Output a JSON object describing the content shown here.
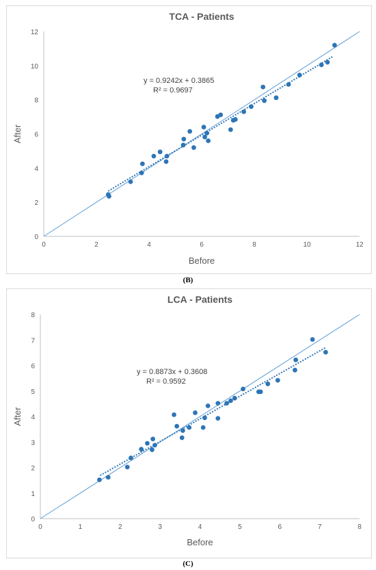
{
  "chart_data": [
    {
      "type": "scatter",
      "title": "TCA - Patients",
      "xlabel": "Before",
      "ylabel": "After",
      "xlim": [
        0,
        12
      ],
      "ylim": [
        0,
        12
      ],
      "xticks": [
        0,
        2,
        4,
        6,
        8,
        10,
        12
      ],
      "yticks": [
        0,
        2,
        4,
        6,
        8,
        10,
        12
      ],
      "grid": false,
      "identity_line": true,
      "trendline": {
        "type": "linear",
        "slope": 0.9242,
        "intercept": 0.3865,
        "x_range": [
          2.45,
          11.0
        ]
      },
      "equation": "y = 0.9242x + 0.3865",
      "r_squared": "R² = 0.9697",
      "colors": {
        "points": "#2e75b6",
        "identity": "#5b9bd5",
        "trend": "#2e75b6"
      },
      "points": [
        [
          2.45,
          2.45
        ],
        [
          2.48,
          2.35
        ],
        [
          3.3,
          3.2
        ],
        [
          3.72,
          3.72
        ],
        [
          3.75,
          4.25
        ],
        [
          4.18,
          4.7
        ],
        [
          4.42,
          4.95
        ],
        [
          4.65,
          4.38
        ],
        [
          4.68,
          4.7
        ],
        [
          5.3,
          5.35
        ],
        [
          5.32,
          5.7
        ],
        [
          5.55,
          6.15
        ],
        [
          5.7,
          5.2
        ],
        [
          6.08,
          6.4
        ],
        [
          6.12,
          5.82
        ],
        [
          6.2,
          6.05
        ],
        [
          6.25,
          5.6
        ],
        [
          6.6,
          7.02
        ],
        [
          6.72,
          7.12
        ],
        [
          7.1,
          6.25
        ],
        [
          7.2,
          6.8
        ],
        [
          7.28,
          6.85
        ],
        [
          7.6,
          7.3
        ],
        [
          7.88,
          7.6
        ],
        [
          8.33,
          8.75
        ],
        [
          8.38,
          7.95
        ],
        [
          8.83,
          8.12
        ],
        [
          9.3,
          8.9
        ],
        [
          9.72,
          9.45
        ],
        [
          10.55,
          10.05
        ],
        [
          10.78,
          10.2
        ],
        [
          11.05,
          11.2
        ]
      ]
    },
    {
      "type": "scatter",
      "title": "LCA - Patients",
      "xlabel": "Before",
      "ylabel": "After",
      "xlim": [
        0,
        8
      ],
      "ylim": [
        0,
        8
      ],
      "xticks": [
        0,
        1,
        2,
        3,
        4,
        5,
        6,
        7,
        8
      ],
      "yticks": [
        0,
        1,
        2,
        3,
        4,
        5,
        6,
        7,
        8
      ],
      "grid": false,
      "identity_line": true,
      "trendline": {
        "type": "linear",
        "slope": 0.8873,
        "intercept": 0.3608,
        "x_range": [
          1.5,
          7.15
        ]
      },
      "equation": "y = 0.8873x + 0.3608",
      "r_squared": "R² = 0.9592",
      "colors": {
        "points": "#2e75b6",
        "identity": "#5b9bd5",
        "trend": "#2e75b6"
      },
      "points": [
        [
          1.48,
          1.52
        ],
        [
          1.7,
          1.62
        ],
        [
          2.18,
          2.02
        ],
        [
          2.27,
          2.38
        ],
        [
          2.53,
          2.72
        ],
        [
          2.68,
          2.95
        ],
        [
          2.8,
          2.7
        ],
        [
          2.82,
          3.12
        ],
        [
          2.87,
          2.88
        ],
        [
          3.35,
          4.07
        ],
        [
          3.42,
          3.62
        ],
        [
          3.55,
          3.17
        ],
        [
          3.57,
          3.45
        ],
        [
          3.73,
          3.57
        ],
        [
          3.88,
          4.15
        ],
        [
          4.08,
          3.57
        ],
        [
          4.12,
          3.95
        ],
        [
          4.2,
          4.42
        ],
        [
          4.45,
          3.93
        ],
        [
          4.45,
          4.52
        ],
        [
          4.67,
          4.52
        ],
        [
          4.77,
          4.62
        ],
        [
          4.87,
          4.72
        ],
        [
          5.08,
          5.08
        ],
        [
          5.47,
          4.97
        ],
        [
          5.52,
          4.97
        ],
        [
          5.7,
          5.28
        ],
        [
          5.95,
          5.42
        ],
        [
          6.38,
          5.82
        ],
        [
          6.4,
          6.22
        ],
        [
          6.82,
          7.02
        ],
        [
          7.15,
          6.52
        ]
      ]
    }
  ],
  "captions": {
    "b": "(B)",
    "c": "(C)"
  }
}
